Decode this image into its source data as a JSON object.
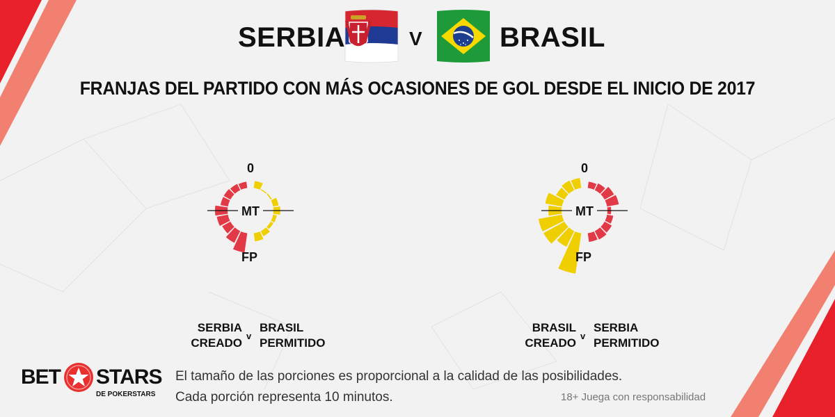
{
  "header": {
    "team_left": "SERBIA",
    "vs": "V",
    "team_right": "BRASIL",
    "subtitle": "FRANJAS DEL PARTIDO CON MÁS OCASIONES DE GOL DESDE EL INICIO DE 2017"
  },
  "flags": {
    "serbia_icon": "serbia-flag-icon",
    "brazil_icon": "brazil-flag-icon"
  },
  "colors": {
    "red": "#e13a46",
    "yellow": "#f0cf00",
    "accent_red": "#e9302f",
    "background": "#f2f2f2"
  },
  "chart_data": [
    {
      "type": "radial-bar",
      "title": "SERBIA CREADO v BRASIL PERMITIDO",
      "labels": {
        "start": "0",
        "half": "MT",
        "end": "FP"
      },
      "segments_per_half": 9,
      "minutes_per_segment": 10,
      "series": [
        {
          "name": "SERBIA CREADO",
          "side": "left",
          "color": "red",
          "values": [
            0.5,
            0.55,
            0.6,
            0.6,
            1.0,
            0.9,
            0.75,
            1.05,
            1.55
          ]
        },
        {
          "name": "BRASIL PERMITIDO",
          "side": "right",
          "color": "yellow",
          "values": [
            0.55,
            0.08,
            0.1,
            0.45,
            0.55,
            0.3,
            0.25,
            0.45,
            0.65
          ]
        }
      ],
      "caption": {
        "left_top": "SERBIA",
        "left_bottom": "CREADO",
        "v": "v",
        "right_top": "BRASIL",
        "right_bottom": "PERMITIDO"
      }
    },
    {
      "type": "radial-bar",
      "title": "BRASIL CREADO v SERBIA PERMITIDO",
      "labels": {
        "start": "0",
        "half": "MT",
        "end": "FP"
      },
      "segments_per_half": 9,
      "minutes_per_segment": 10,
      "series": [
        {
          "name": "BRASIL CREADO",
          "side": "left",
          "color": "yellow",
          "values": [
            0.8,
            0.85,
            0.75,
            1.35,
            1.05,
            1.9,
            1.9,
            1.4,
            3.25
          ]
        },
        {
          "name": "SERBIA PERMITIDO",
          "side": "right",
          "color": "red",
          "values": [
            0.5,
            0.6,
            0.85,
            0.95,
            0.3,
            0.5,
            0.65,
            0.75,
            0.7
          ]
        }
      ],
      "caption": {
        "left_top": "BRASIL",
        "left_bottom": "CREADO",
        "v": "v",
        "right_top": "SERBIA",
        "right_bottom": "PERMITIDO"
      }
    }
  ],
  "footer": {
    "note_line1": "El tamaño de las porciones es proporcional a la calidad de las posibilidades.",
    "note_line2": "Cada porción representa 10 minutos.",
    "responsible": "18+ Juega con responsabilidad"
  },
  "logo": {
    "bet": "BET",
    "stars": "STARS",
    "sub": "DE POKERSTARS",
    "icon": "star-icon"
  }
}
